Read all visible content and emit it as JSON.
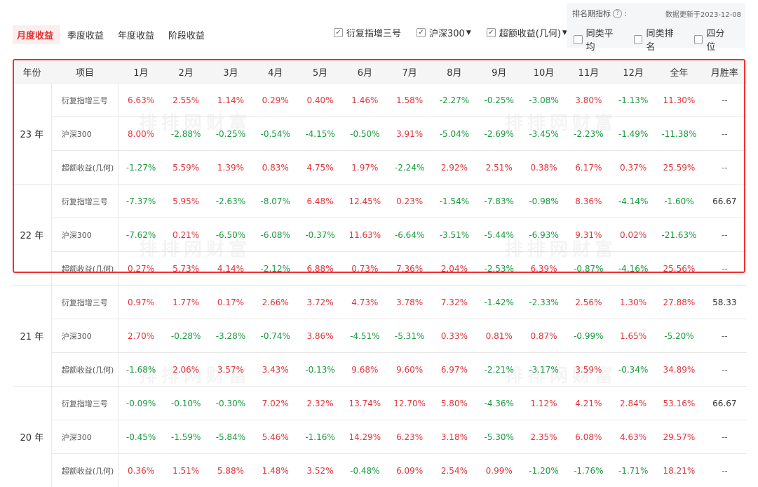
{
  "tabs": [
    "月度收益",
    "季度收益",
    "年度收益",
    "阶段收益"
  ],
  "series_toggles": [
    {
      "label": "衍复指增三号",
      "dropdown": false
    },
    {
      "label": "沪深300",
      "dropdown": true
    },
    {
      "label": "超额收益(几何)",
      "dropdown": true
    }
  ],
  "rank_panel": {
    "title": "排名期指标",
    "colon": ":",
    "update": "数据更新于2023-12-08",
    "options": [
      "同类平均",
      "同类排名",
      "四分位"
    ]
  },
  "watermark": "排排网财富",
  "table": {
    "headers": [
      "年份",
      "项目",
      "1月",
      "2月",
      "3月",
      "4月",
      "5月",
      "6月",
      "7月",
      "8月",
      "9月",
      "10月",
      "11月",
      "12月",
      "全年",
      "月胜率"
    ],
    "groups": [
      {
        "year": "23 年",
        "rows": [
          {
            "item": "衍复指增三号",
            "values": [
              "6.63%",
              "2.55%",
              "1.14%",
              "0.29%",
              "0.40%",
              "1.46%",
              "1.58%",
              "-2.27%",
              "-0.25%",
              "-3.08%",
              "3.80%",
              "-1.13%",
              "11.30%"
            ],
            "winrate": "--"
          },
          {
            "item": "沪深300",
            "values": [
              "8.00%",
              "-2.88%",
              "-0.25%",
              "-0.54%",
              "-4.15%",
              "-0.50%",
              "3.91%",
              "-5.04%",
              "-2.69%",
              "-3.45%",
              "-2.23%",
              "-1.49%",
              "-11.38%"
            ],
            "winrate": "--"
          },
          {
            "item": "超额收益(几何)",
            "values": [
              "-1.27%",
              "5.59%",
              "1.39%",
              "0.83%",
              "4.75%",
              "1.97%",
              "-2.24%",
              "2.92%",
              "2.51%",
              "0.38%",
              "6.17%",
              "0.37%",
              "25.59%"
            ],
            "winrate": "--"
          }
        ]
      },
      {
        "year": "22 年",
        "rows": [
          {
            "item": "衍复指增三号",
            "values": [
              "-7.37%",
              "5.95%",
              "-2.63%",
              "-8.07%",
              "6.48%",
              "12.45%",
              "0.23%",
              "-1.54%",
              "-7.83%",
              "-0.98%",
              "8.36%",
              "-4.14%",
              "-1.60%"
            ],
            "winrate": "66.67"
          },
          {
            "item": "沪深300",
            "values": [
              "-7.62%",
              "0.21%",
              "-6.50%",
              "-6.08%",
              "-0.37%",
              "11.63%",
              "-6.64%",
              "-3.51%",
              "-5.44%",
              "-6.93%",
              "9.31%",
              "0.02%",
              "-21.63%"
            ],
            "winrate": "--"
          },
          {
            "item": "超额收益(几何)",
            "values": [
              "0.27%",
              "5.73%",
              "4.14%",
              "-2.12%",
              "6.88%",
              "0.73%",
              "7.36%",
              "2.04%",
              "-2.53%",
              "6.39%",
              "-0.87%",
              "-4.16%",
              "25.56%"
            ],
            "winrate": "--"
          }
        ]
      },
      {
        "year": "21 年",
        "rows": [
          {
            "item": "衍复指增三号",
            "values": [
              "0.97%",
              "1.77%",
              "0.17%",
              "2.66%",
              "3.72%",
              "4.73%",
              "3.78%",
              "7.32%",
              "-1.42%",
              "-2.33%",
              "2.56%",
              "1.30%",
              "27.88%"
            ],
            "winrate": "58.33"
          },
          {
            "item": "沪深300",
            "values": [
              "2.70%",
              "-0.28%",
              "-3.28%",
              "-0.74%",
              "3.86%",
              "-4.51%",
              "-5.31%",
              "0.33%",
              "0.81%",
              "0.87%",
              "-0.99%",
              "1.65%",
              "-5.20%"
            ],
            "winrate": "--"
          },
          {
            "item": "超额收益(几何)",
            "values": [
              "-1.68%",
              "2.06%",
              "3.57%",
              "3.43%",
              "-0.13%",
              "9.68%",
              "9.60%",
              "6.97%",
              "-2.21%",
              "-3.17%",
              "3.59%",
              "-0.34%",
              "34.89%"
            ],
            "winrate": "--"
          }
        ]
      },
      {
        "year": "20 年",
        "rows": [
          {
            "item": "衍复指增三号",
            "values": [
              "-0.09%",
              "-0.10%",
              "-0.30%",
              "7.02%",
              "2.32%",
              "13.74%",
              "12.70%",
              "5.80%",
              "-4.36%",
              "1.12%",
              "4.21%",
              "2.84%",
              "53.16%"
            ],
            "winrate": "66.67"
          },
          {
            "item": "沪深300",
            "values": [
              "-0.45%",
              "-1.59%",
              "-5.84%",
              "5.46%",
              "-1.16%",
              "14.29%",
              "6.23%",
              "3.18%",
              "-5.30%",
              "2.35%",
              "6.08%",
              "4.63%",
              "29.57%"
            ],
            "winrate": "--"
          },
          {
            "item": "超额收益(几何)",
            "values": [
              "0.36%",
              "1.51%",
              "5.88%",
              "1.48%",
              "3.52%",
              "-0.48%",
              "6.09%",
              "2.54%",
              "0.99%",
              "-1.20%",
              "-1.76%",
              "-1.71%",
              "18.21%"
            ],
            "winrate": "--"
          }
        ]
      }
    ]
  },
  "colors": {
    "positive": "#e0353b",
    "negative": "#1a9a3f",
    "highlight": "#e33333",
    "active_tab": "#e03030"
  }
}
